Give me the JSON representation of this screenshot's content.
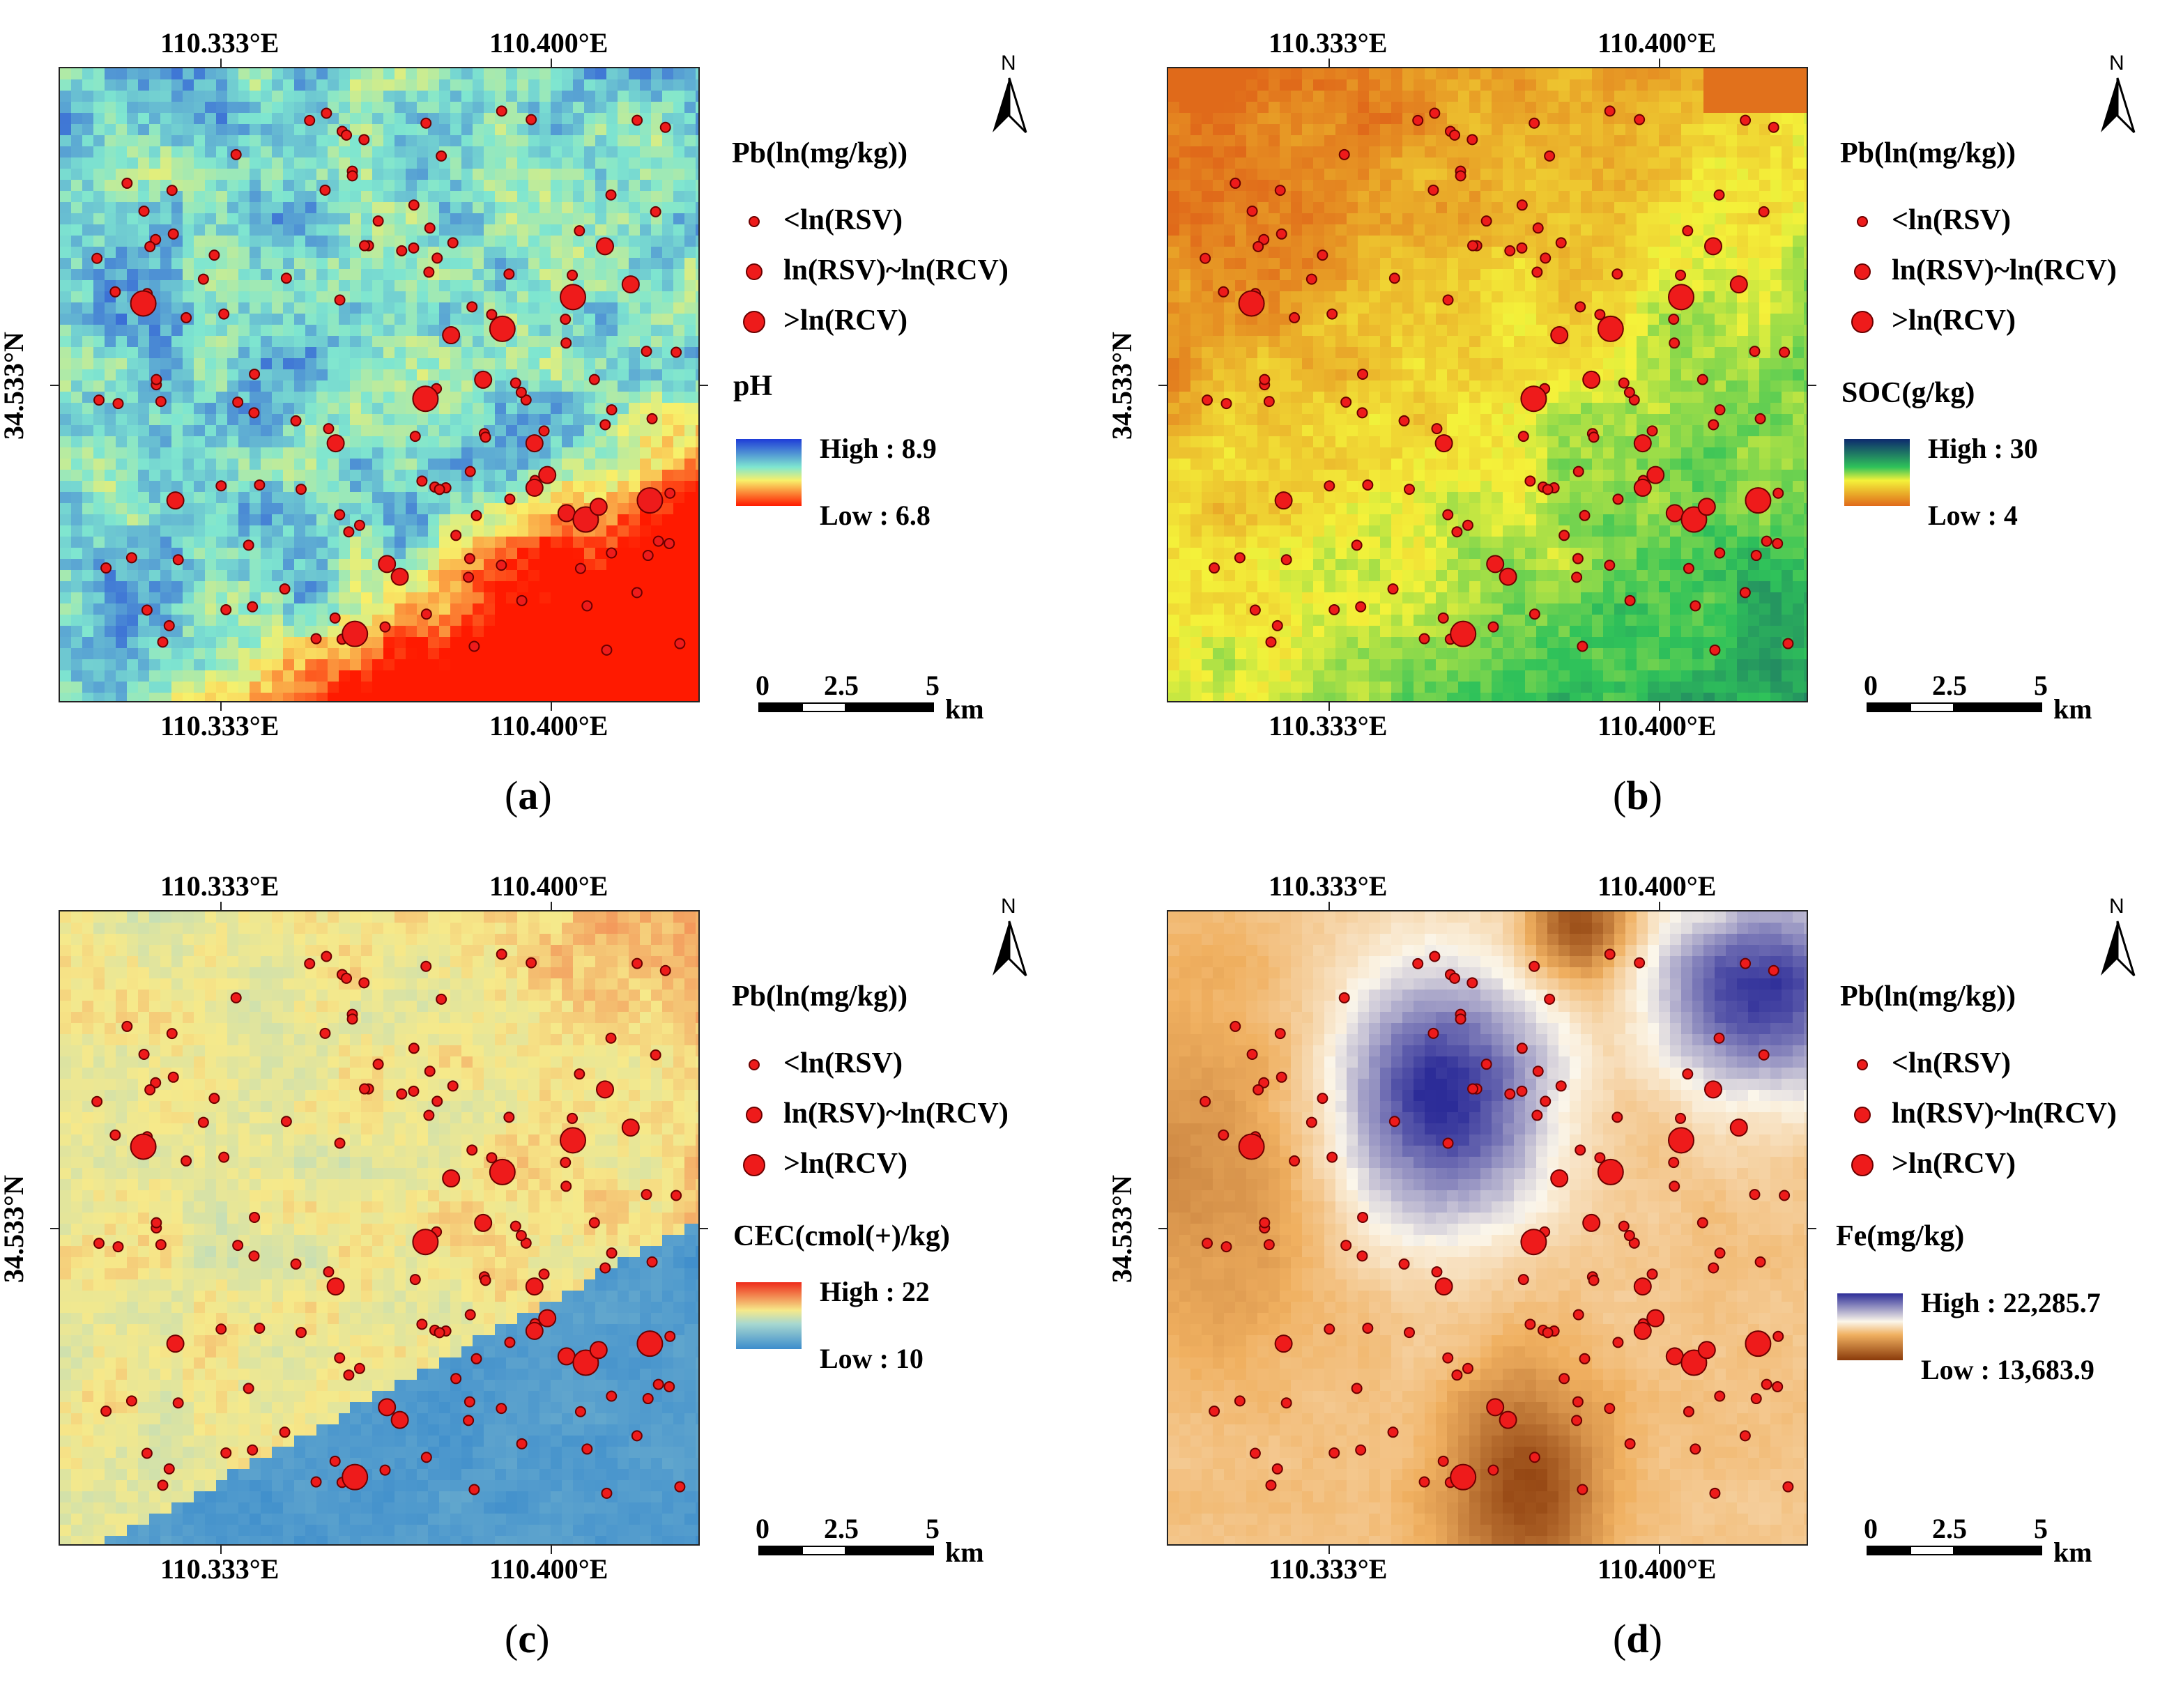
{
  "panels": [
    {
      "caption": "a",
      "lon_left": "110.333°E",
      "lon_right": "110.400°E",
      "lat": "34.533°N",
      "points_title": "Pb(ln(mg/kg))",
      "classes": [
        "<ln(RSV)",
        "ln(RSV)~ln(RCV)",
        ">ln(RCV)"
      ],
      "raster_title": "pH",
      "high": "High : 8.9",
      "low": "Low : 6.8",
      "ramp_top": "#1e3cd8",
      "ramp_mid": "#7fe6d0",
      "ramp_mid2": "#f8f06a",
      "ramp_bottom": "#ff1a00",
      "scale": {
        "a": "0",
        "b": "2.5",
        "c": "5",
        "unit": "km"
      },
      "north": "N"
    },
    {
      "caption": "b",
      "lon_left": "110.333°E",
      "lon_right": "110.400°E",
      "lat": "34.533°N",
      "points_title": "Pb(ln(mg/kg))",
      "classes": [
        "<ln(RSV)",
        "ln(RSV)~ln(RCV)",
        ">ln(RCV)"
      ],
      "raster_title": "SOC(g/kg)",
      "high": "High : 30",
      "low": "Low : 4",
      "ramp_top": "#0d2a6e",
      "ramp_mid": "#2fc25a",
      "ramp_mid2": "#f4f23a",
      "ramp_bottom": "#e06a1a",
      "scale": {
        "a": "0",
        "b": "2.5",
        "c": "5",
        "unit": "km"
      },
      "north": "N"
    },
    {
      "caption": "c",
      "lon_left": "110.333°E",
      "lon_right": "110.400°E",
      "lat": "34.533°N",
      "points_title": "Pb(ln(mg/kg))",
      "classes": [
        "<ln(RSV)",
        "ln(RSV)~ln(RCV)",
        ">ln(RCV)"
      ],
      "raster_title": "CEC(cmol(+)/kg)",
      "high": "High : 22",
      "low": "Low : 10",
      "ramp_top": "#ee2a1a",
      "ramp_mid": "#f6e98a",
      "ramp_mid2": "#a8d8d0",
      "ramp_bottom": "#3c8ccc",
      "scale": {
        "a": "0",
        "b": "2.5",
        "c": "5",
        "unit": "km"
      },
      "north": "N"
    },
    {
      "caption": "d",
      "lon_left": "110.333°E",
      "lon_right": "110.400°E",
      "lat": "34.533°N",
      "points_title": "Pb(ln(mg/kg))",
      "classes": [
        "<ln(RSV)",
        "ln(RSV)~ln(RCV)",
        ">ln(RCV)"
      ],
      "raster_title": "Fe(mg/kg)",
      "high": "High : 22,285.7",
      "low": "Low : 13,683.9",
      "ramp_top": "#2c2c98",
      "ramp_mid": "#fbf6ea",
      "ramp_mid2": "#f0b060",
      "ramp_bottom": "#8a3a0a",
      "scale": {
        "a": "0",
        "b": "2.5",
        "c": "5",
        "unit": "km"
      },
      "north": "N"
    }
  ],
  "colors": {
    "point_fill": "#ee1b1b",
    "point_stroke": "#6b0000"
  }
}
